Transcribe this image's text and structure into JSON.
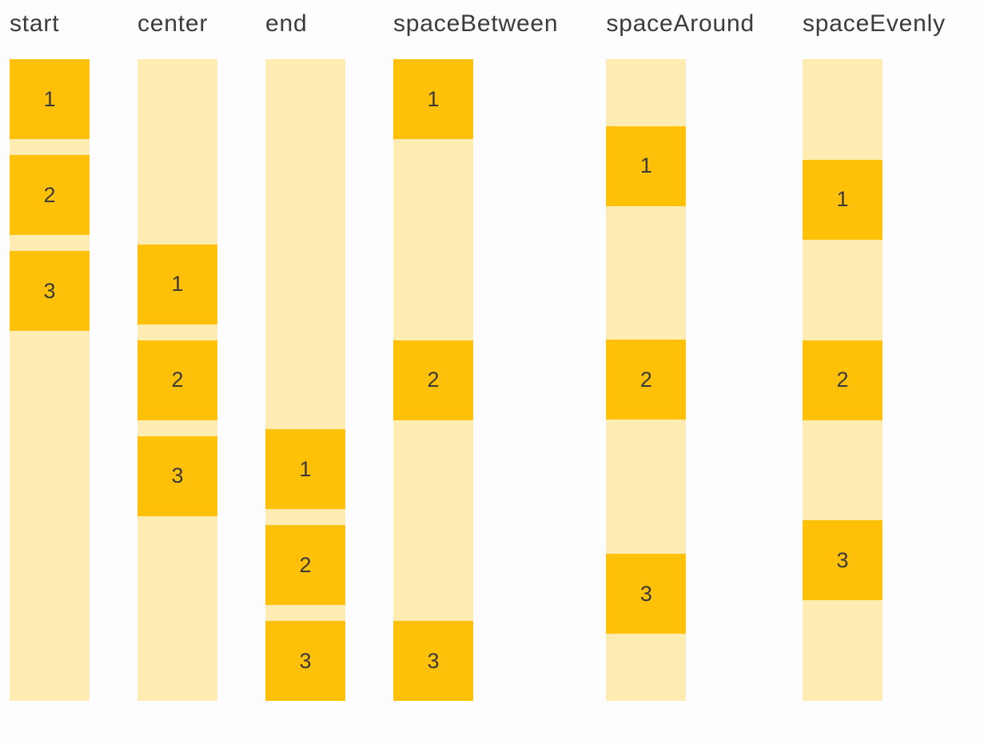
{
  "colors": {
    "background": "#fdfdff",
    "track": "#ffecb3",
    "box": "#ffc107",
    "label_text": "#3b3b3b",
    "digit_text": "#3a3a3a"
  },
  "columns": [
    {
      "label": "start",
      "alignment": "start",
      "items": [
        "1",
        "2",
        "3"
      ]
    },
    {
      "label": "center",
      "alignment": "center",
      "items": [
        "1",
        "2",
        "3"
      ]
    },
    {
      "label": "end",
      "alignment": "end",
      "items": [
        "1",
        "2",
        "3"
      ]
    },
    {
      "label": "spaceBetween",
      "alignment": "spaceBetween",
      "items": [
        "1",
        "2",
        "3"
      ]
    },
    {
      "label": "spaceAround",
      "alignment": "spaceAround",
      "items": [
        "1",
        "2",
        "3"
      ]
    },
    {
      "label": "spaceEvenly",
      "alignment": "spaceEvenly",
      "items": [
        "1",
        "2",
        "3"
      ]
    }
  ]
}
